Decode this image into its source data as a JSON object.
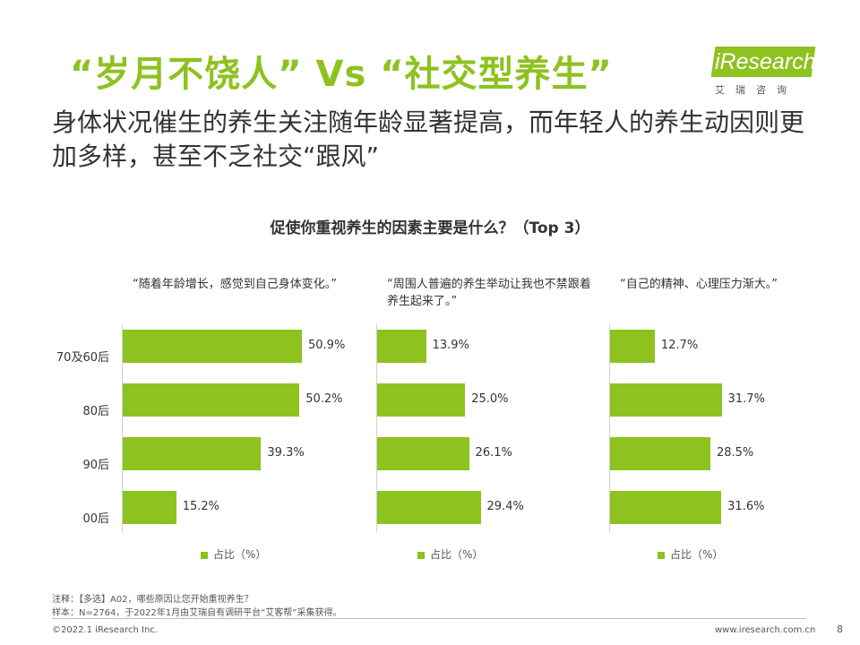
{
  "title": "“岁月不饶人” Vs “社交型养生”",
  "subtitle": "身体状况催生的养生关注随年龄显著提高，而年轻人的养生动因则更加多样，甚至不乏社交“跟风”",
  "logo": {
    "brand": "iResearch",
    "sub": "艾瑞咨询"
  },
  "colors": {
    "accent": "#8dc21f"
  },
  "chart_data": {
    "title": "促使你重视养生的因素主要是什么？（Top 3）",
    "type": "bar",
    "orientation": "horizontal",
    "categories": [
      "70及60后",
      "80后",
      "90后",
      "00后"
    ],
    "unit": "%",
    "xlim": [
      0,
      60
    ],
    "series": [
      {
        "name": "“随着年龄增长，感觉到自己身体变化。”",
        "values": [
          50.9,
          50.2,
          39.3,
          15.2
        ],
        "labels": [
          "50.9%",
          "50.2%",
          "39.3%",
          "15.2%"
        ],
        "legend": "占比（%）"
      },
      {
        "name": "“周围人普遍的养生举动让我也不禁跟着养生起来了。”",
        "values": [
          13.9,
          25.0,
          26.1,
          29.4
        ],
        "labels": [
          "13.9%",
          "25.0%",
          "26.1%",
          "29.4%"
        ],
        "legend": "占比（%）"
      },
      {
        "name": "“自己的精神、心理压力渐大。”",
        "values": [
          12.7,
          31.7,
          28.5,
          31.6
        ],
        "labels": [
          "12.7%",
          "31.7%",
          "28.5%",
          "31.6%"
        ],
        "legend": "占比（%）"
      }
    ]
  },
  "notes": {
    "note1": "注释：【多选】A02，哪些原因让您开始重视养生？",
    "note2": "样本：N=2764，于2022年1月由艾瑞自有调研平台“艾客帮”采集获得。"
  },
  "footer": {
    "copyright": "©2022.1 iResearch Inc.",
    "url": "www.iresearch.com.cn",
    "page": "8"
  }
}
